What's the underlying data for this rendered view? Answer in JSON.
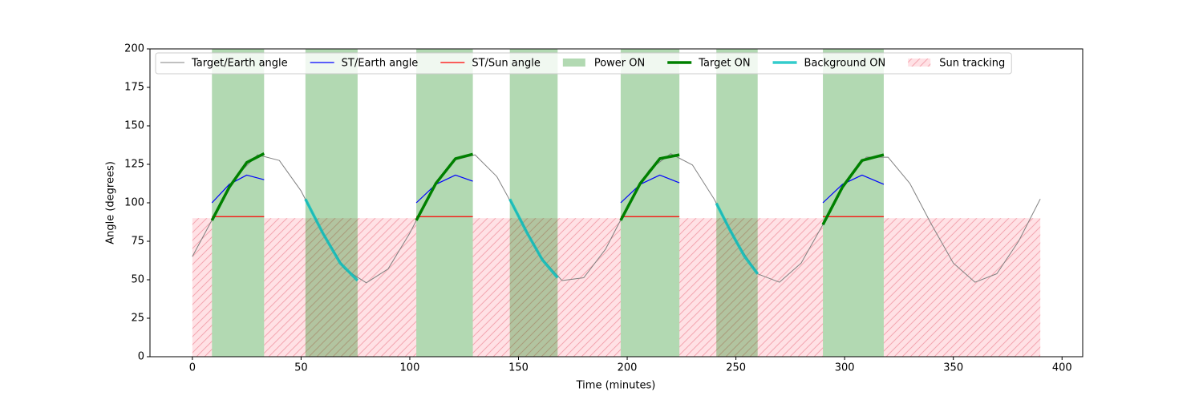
{
  "chart_data": {
    "type": "line",
    "xlabel": "Time (minutes)",
    "ylabel": "Angle (degrees)",
    "xlim": [
      -19.5,
      409.5
    ],
    "ylim": [
      0,
      200
    ],
    "xticks": [
      0,
      50,
      100,
      150,
      200,
      250,
      300,
      350,
      400
    ],
    "yticks": [
      0,
      25,
      50,
      75,
      100,
      125,
      150,
      175,
      200
    ],
    "series": [
      {
        "name": "Target/Earth angle",
        "kind": "line",
        "color": "#808080",
        "linewidth": 1,
        "segments": [
          {
            "x": [
              0,
              10,
              20,
              30,
              40,
              50,
              60,
              70,
              80,
              90,
              100,
              110,
              120,
              130,
              140,
              150,
              160,
              170,
              180,
              190,
              200,
              210,
              220,
              230,
              240,
              250,
              260,
              270,
              280,
              290,
              300,
              310,
              320,
              330,
              340,
              350,
              360,
              370,
              380,
              390
            ],
            "values": [
              65.1,
              91.4,
              117.1,
              131.2,
              127.5,
              107.7,
              80.3,
              57.0,
              48.0,
              57.0,
              80.3,
              107.7,
              127.5,
              131.2,
              117.1,
              91.4,
              65.1,
              49.5,
              51.3,
              69.8,
              97.0,
              121.2,
              131.9,
              124.6,
              102.4,
              74.9,
              53.8,
              48.4,
              60.8,
              85.8,
              112.6,
              129.7,
              129.6,
              112.6,
              85.8,
              60.8,
              48.4,
              53.9,
              75.0,
              102.5
            ]
          }
        ]
      },
      {
        "name": "ST/Earth angle",
        "kind": "line",
        "color": "#0000ff",
        "linewidth": 1.2,
        "segments": [
          {
            "x": [
              9,
              17,
              25,
              33
            ],
            "values": [
              100,
              112,
              118,
              115
            ]
          },
          {
            "x": [
              103,
              112,
              121,
              129
            ],
            "values": [
              100,
              112,
              118,
              114
            ]
          },
          {
            "x": [
              197,
              206,
              215,
              224
            ],
            "values": [
              100,
              112,
              118,
              113
            ]
          },
          {
            "x": [
              290,
              299,
              308,
              318
            ],
            "values": [
              100,
              112,
              118,
              112
            ]
          }
        ]
      },
      {
        "name": "ST/Sun angle",
        "kind": "line",
        "color": "#ff0000",
        "linewidth": 1.2,
        "segments": [
          {
            "x": [
              9,
              33
            ],
            "values": [
              91,
              91
            ]
          },
          {
            "x": [
              103,
              129
            ],
            "values": [
              91,
              91
            ]
          },
          {
            "x": [
              197,
              224
            ],
            "values": [
              91,
              91
            ]
          },
          {
            "x": [
              290,
              318
            ],
            "values": [
              91,
              91
            ]
          }
        ]
      },
      {
        "name": "Power ON",
        "kind": "band",
        "color": "#008000",
        "alpha": 0.3,
        "spans": [
          [
            9,
            33
          ],
          [
            52,
            76
          ],
          [
            103,
            129
          ],
          [
            146,
            168
          ],
          [
            197,
            224
          ],
          [
            241,
            260
          ],
          [
            290,
            318
          ]
        ]
      },
      {
        "name": "Target ON",
        "kind": "line",
        "color": "#008000",
        "linewidth": 3.5,
        "segments": [
          {
            "x": [
              9,
              17,
              25,
              33
            ],
            "values": [
              88.6,
              110.2,
              126.2,
              132.0
            ]
          },
          {
            "x": [
              103,
              112,
              121,
              129
            ],
            "values": [
              88.6,
              112.6,
              128.7,
              131.6
            ]
          },
          {
            "x": [
              197,
              206,
              215,
              224
            ],
            "values": [
              88.6,
              112.6,
              128.7,
              131.2
            ]
          },
          {
            "x": [
              290,
              299,
              308,
              318
            ],
            "values": [
              85.8,
              110.2,
              127.5,
              131.2
            ]
          }
        ]
      },
      {
        "name": "Background ON",
        "kind": "line",
        "color": "#00bfbf",
        "alpha": 0.8,
        "linewidth": 3.5,
        "segments": [
          {
            "x": [
              52,
              60,
              68,
              76
            ],
            "values": [
              102.4,
              80.3,
              60.8,
              49.5
            ]
          },
          {
            "x": [
              146,
              154,
              161,
              168
            ],
            "values": [
              102.4,
              80.3,
              62.9,
              51.3
            ]
          },
          {
            "x": [
              241,
              247,
              254,
              260
            ],
            "values": [
              99.7,
              83.0,
              65.1,
              53.8
            ]
          }
        ]
      },
      {
        "name": "Sun tracking",
        "kind": "band",
        "color": "#ff9aa8",
        "alpha": 0.3,
        "hatch": true,
        "ymax": 90,
        "spans": [
          [
            0,
            9
          ],
          [
            33,
            103
          ],
          [
            129,
            197
          ],
          [
            224,
            290
          ],
          [
            318,
            390
          ]
        ]
      }
    ]
  }
}
